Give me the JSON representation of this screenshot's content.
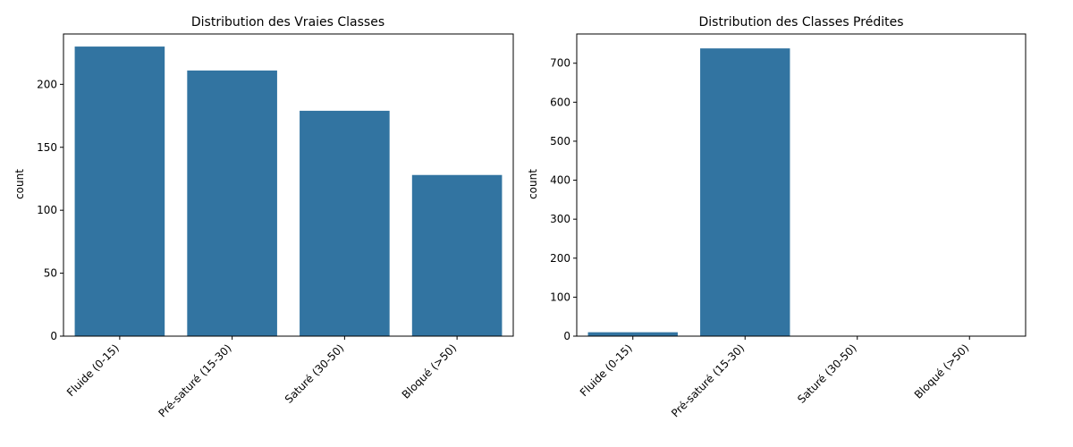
{
  "chart_data": [
    {
      "type": "bar",
      "title": "Distribution des Vraies Classes",
      "xlabel": "",
      "ylabel": "count",
      "categories": [
        "Fluide (0-15)",
        "Pré-saturé (15-30)",
        "Saturé (30-50)",
        "Bloqué (>50)"
      ],
      "values": [
        230,
        211,
        179,
        128
      ],
      "ylim": [
        0,
        240
      ],
      "yticks": [
        0,
        50,
        100,
        150,
        200
      ],
      "color": "#3274a1",
      "grid": false
    },
    {
      "type": "bar",
      "title": "Distribution des Classes Prédites",
      "xlabel": "",
      "ylabel": "count",
      "categories": [
        "Fluide (0-15)",
        "Pré-saturé (15-30)",
        "Saturé (30-50)",
        "Bloqué (>50)"
      ],
      "values": [
        10,
        738,
        0,
        0
      ],
      "ylim": [
        0,
        775
      ],
      "yticks": [
        0,
        100,
        200,
        300,
        400,
        500,
        600,
        700
      ],
      "color": "#3274a1",
      "grid": false
    }
  ]
}
